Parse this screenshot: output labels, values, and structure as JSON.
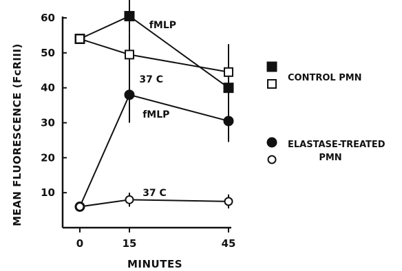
{
  "chart_data": {
    "type": "line",
    "xlabel": "MINUTES",
    "ylabel": "MEAN FLUORESCENCE (FcRIII)",
    "xlim": [
      0,
      45
    ],
    "ylim": [
      0,
      60
    ],
    "x_ticks": [
      0,
      15,
      45
    ],
    "y_ticks": [
      10,
      20,
      30,
      40,
      50,
      60
    ],
    "grid": false,
    "legend_position": "right",
    "legend": [
      {
        "label": "CONTROL PMN",
        "lines": [
          "CONTROL PMN"
        ],
        "markers": [
          "filled-square",
          "open-square"
        ]
      },
      {
        "label": "ELASTASE-TREATED PMN",
        "lines": [
          "ELASTASE-TREATED",
          "PMN"
        ],
        "markers": [
          "filled-circle",
          "open-circle"
        ]
      }
    ],
    "series": [
      {
        "group": "CONTROL PMN",
        "condition": "fMLP",
        "marker": "filled-square",
        "x": [
          0,
          15,
          45
        ],
        "y": [
          54,
          60.5,
          40
        ],
        "error": [
          0,
          5,
          7
        ]
      },
      {
        "group": "CONTROL PMN",
        "condition": "37 C",
        "marker": "open-square",
        "x": [
          0,
          15,
          45
        ],
        "y": [
          54,
          49.5,
          44.5
        ],
        "error": [
          0,
          6,
          8
        ]
      },
      {
        "group": "ELASTASE-TREATED PMN",
        "condition": "fMLP",
        "marker": "filled-circle",
        "x": [
          0,
          15,
          45
        ],
        "y": [
          6,
          38,
          30.5
        ],
        "error": [
          0,
          8,
          6
        ]
      },
      {
        "group": "ELASTASE-TREATED PMN",
        "condition": "37 C",
        "marker": "open-circle",
        "x": [
          0,
          15,
          45
        ],
        "y": [
          6,
          8,
          7.5
        ],
        "error": [
          0,
          2,
          2
        ]
      }
    ],
    "annotations": [
      {
        "text": "fMLP",
        "x": 21,
        "y": 58
      },
      {
        "text": "37 C",
        "x": 18,
        "y": 42.5
      },
      {
        "text": "fMLP",
        "x": 19,
        "y": 32.5
      },
      {
        "text": "37 C",
        "x": 19,
        "y": 10
      }
    ],
    "colors": {
      "ink": "#111111",
      "background": "#ffffff"
    }
  }
}
